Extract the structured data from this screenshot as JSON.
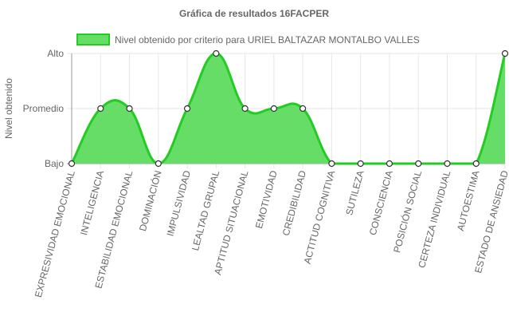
{
  "chart_data": {
    "type": "area",
    "title": "Gráfica de resultados 16FACPER",
    "ylabel": "Nivel obtenido",
    "xlabel": "",
    "y_categories": [
      "Bajo",
      "Promedio",
      "Alto"
    ],
    "categories": [
      "EXPRESIVIDAD EMOCIONAL",
      "INTELIGENCIA",
      "ESTABILIDAD EMOCIONAL",
      "DOMINACIÓN",
      "IMPULSIVIDAD",
      "LEALTAD GRUPAL",
      "APTITUD SITUACIONAL",
      "EMOTIVIDAD",
      "CREDIBILIDAD",
      "ACTITUD COGNITIVA",
      "SUTILEZA",
      "CONSCIENCIA",
      "POSICIÓN SOCIAL",
      "CERTEZA INDIVIDUAL",
      "AUTOESTIMA",
      "ESTADO DE ANSIEDAD"
    ],
    "series": [
      {
        "name": "Nivel obtenido por criterio para URIEL BALTAZAR MONTALBO VALLES",
        "values": [
          "Bajo",
          "Promedio",
          "Promedio",
          "Bajo",
          "Promedio",
          "Alto",
          "Promedio",
          "Promedio",
          "Promedio",
          "Bajo",
          "Bajo",
          "Bajo",
          "Bajo",
          "Bajo",
          "Bajo",
          "Alto"
        ]
      }
    ],
    "legend_position": "top",
    "grid": true,
    "colors": {
      "fill": "#66dd66",
      "stroke": "#22cc22",
      "point_fill": "#ffffff",
      "point_stroke": "#333333",
      "grid": "#e6e6e6",
      "axis": "#999999"
    }
  }
}
